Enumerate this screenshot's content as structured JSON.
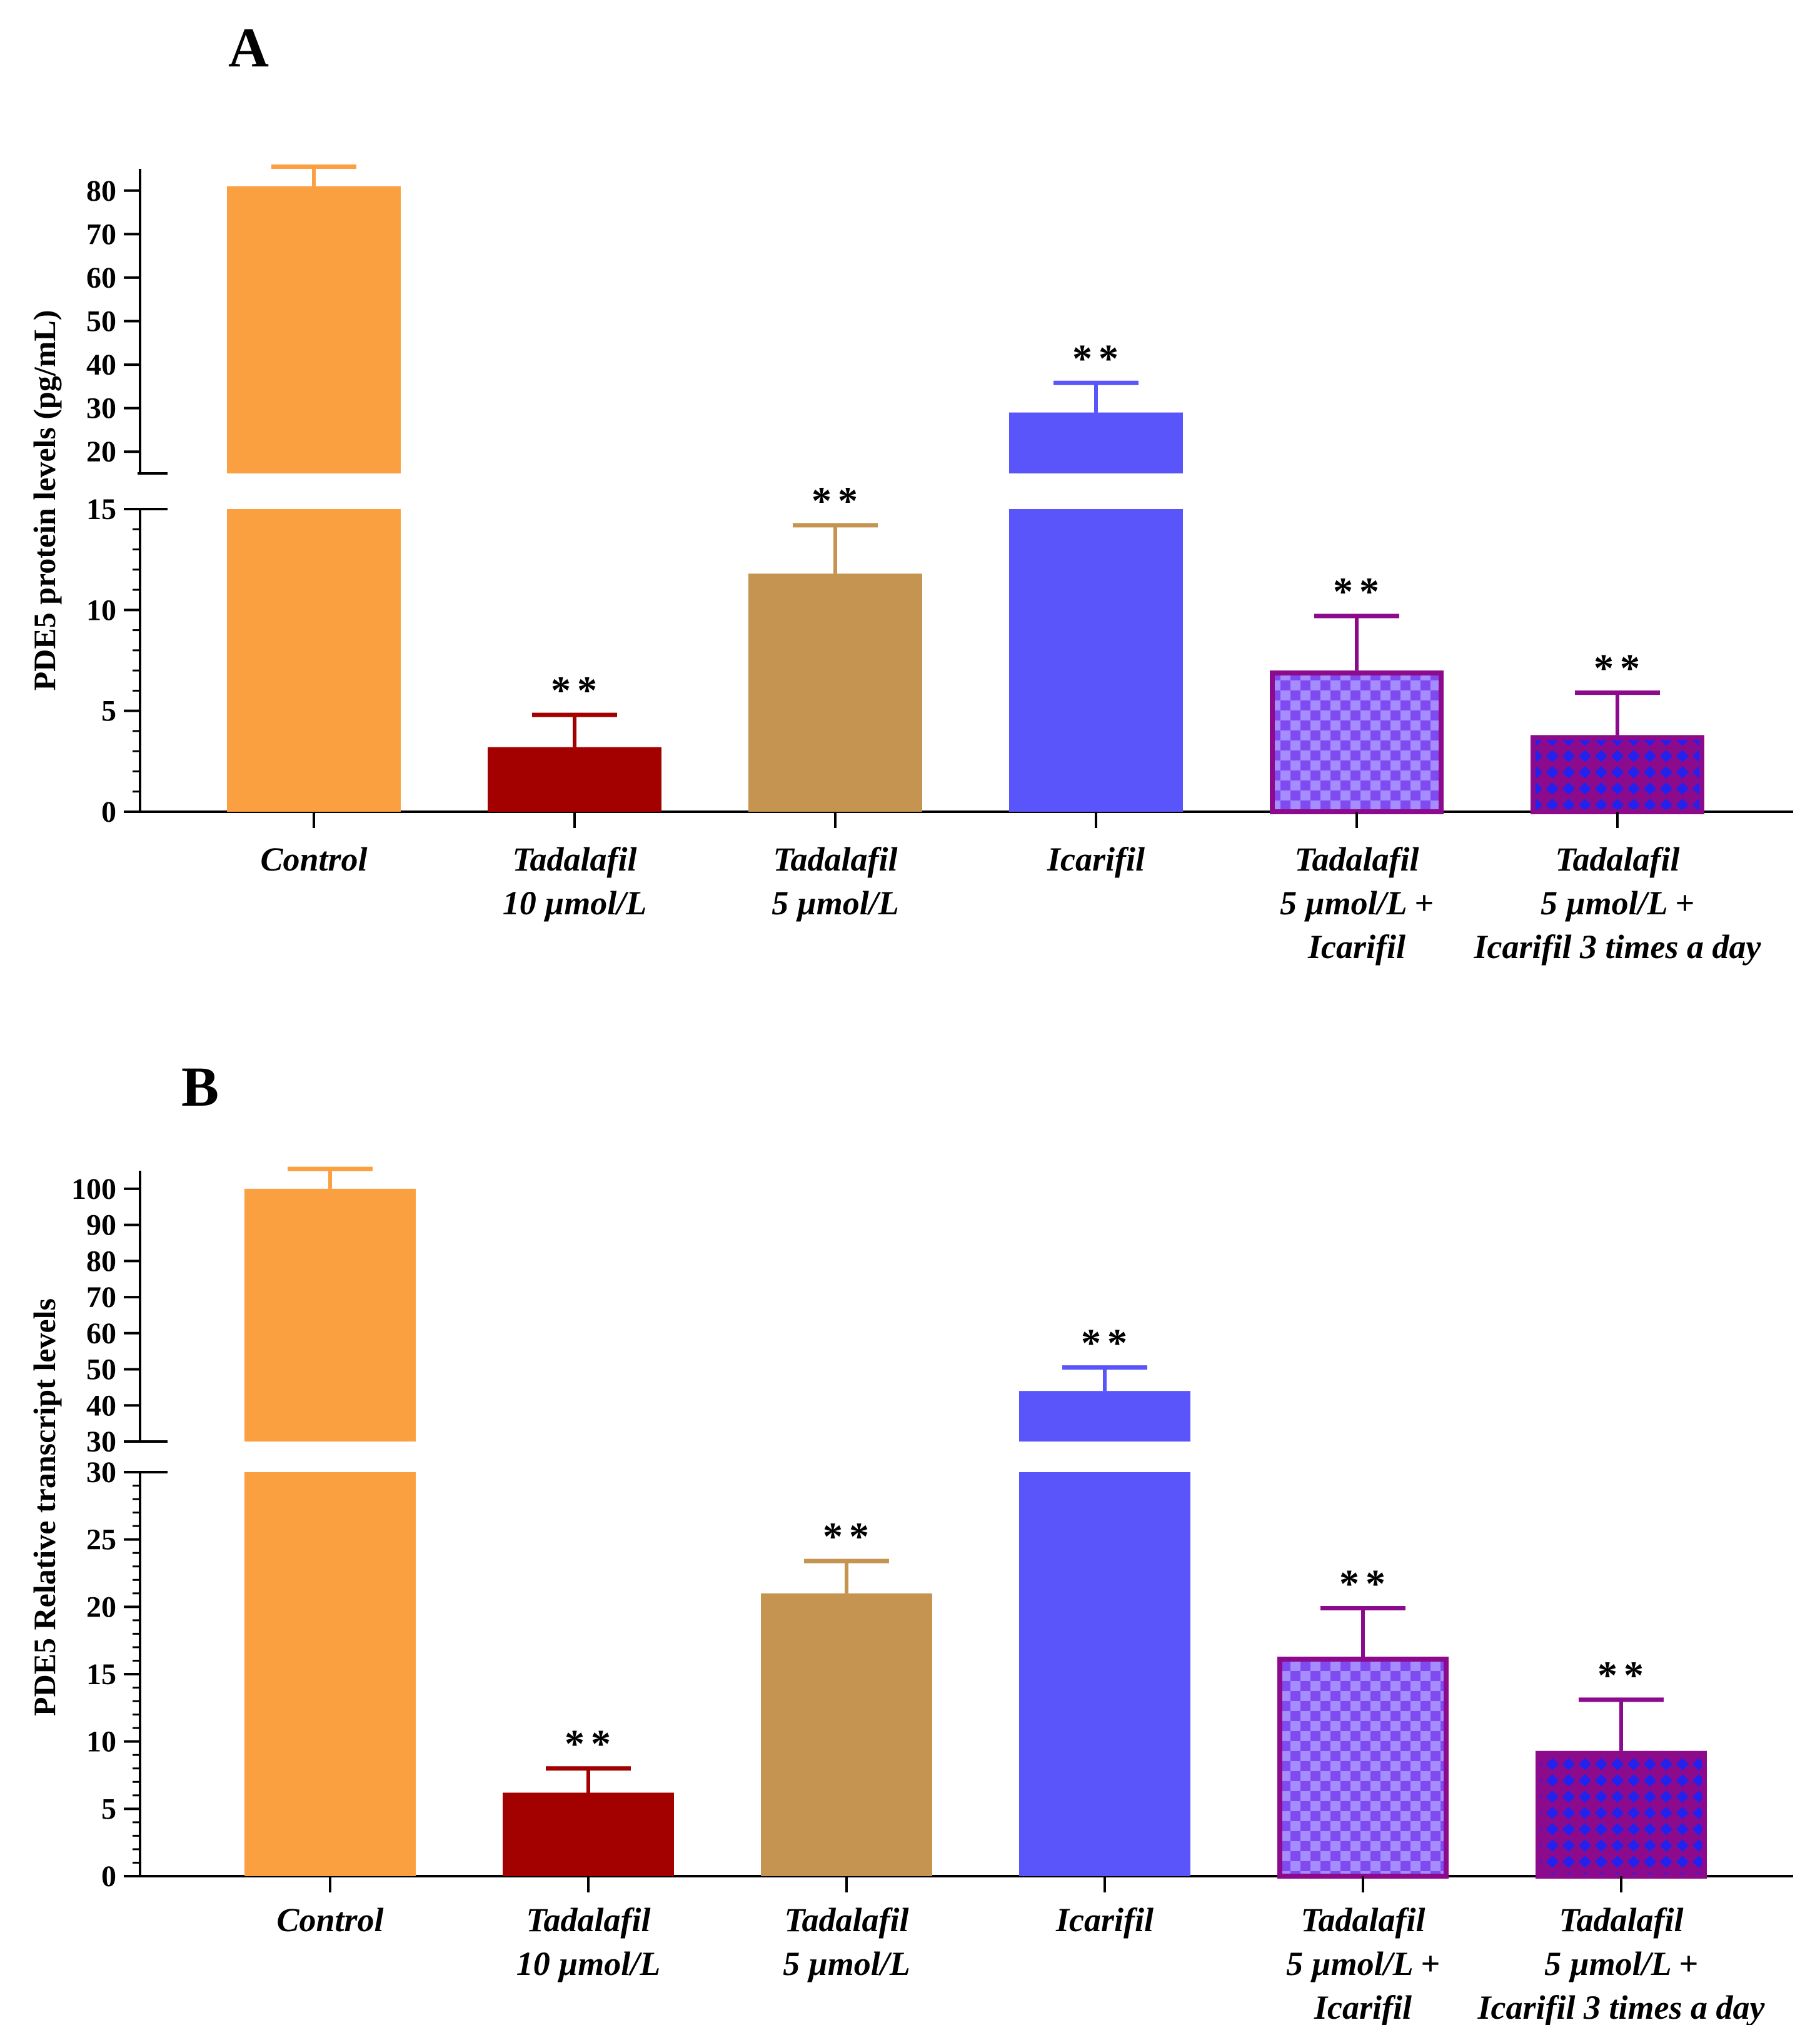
{
  "figure": {
    "panels": [
      "A",
      "B"
    ]
  },
  "colors": {
    "control": "#FBA040",
    "tad10": "#A30000",
    "tad5": "#C49450",
    "icarifil": "#5A55FA",
    "combo_border": "#8C0A8C",
    "combo_fill_a": "#7F4BF0",
    "combo_fill_b": "#A58CFF",
    "combo3_fill_a": "#8C0A8C",
    "combo3_fill_b": "#2222EE",
    "axis": "#000000"
  },
  "chart_data": [
    {
      "type": "bar",
      "panel": "A",
      "title": "",
      "xlabel": "",
      "ylabel": "PDE5 protein levels (pg/mL)",
      "categories": [
        "Control",
        "Tadalafil 10 µmol/L",
        "Tadalafil 5 µmol/L",
        "Icarifil",
        "Tadalafil 5 µmol/L + Icarifil",
        "Tadalafil 5 µmol/L + Icarifil 3 times a day"
      ],
      "category_lines": [
        [
          "Control"
        ],
        [
          "Tadalafil",
          "10 µmol/L"
        ],
        [
          "Tadalafil",
          "5 µmol/L"
        ],
        [
          "Icarifil"
        ],
        [
          "Tadalafil",
          "5 µmol/L +",
          "Icarifil"
        ],
        [
          "Tadalafil",
          "5 µmol/L +",
          "Icarifil 3 times a day"
        ]
      ],
      "values": [
        81,
        3.2,
        11.8,
        29,
        7.0,
        3.8
      ],
      "errors": [
        4.5,
        1.6,
        2.4,
        6.8,
        2.7,
        2.1
      ],
      "significance": [
        "",
        "**",
        "**",
        "**",
        "**",
        "**"
      ],
      "broken_axis": true,
      "lower_range": [
        0,
        15
      ],
      "upper_range": [
        15,
        85
      ],
      "lower_ticks": [
        0,
        5,
        10,
        15
      ],
      "upper_ticks": [
        20,
        30,
        40,
        50,
        60,
        70,
        80
      ],
      "lower_minor_step": 1
    },
    {
      "type": "bar",
      "panel": "B",
      "title": "",
      "xlabel": "",
      "ylabel": "PDE5 Relative transcript levels",
      "categories": [
        "Control",
        "Tadalafil 10 µmol/L",
        "Tadalafil 5 µmol/L",
        "Icarifil",
        "Tadalafil 5 µmol/L + Icarifil",
        "Tadalafil 5 µmol/L + Icarifil 3 times a day"
      ],
      "category_lines": [
        [
          "Control"
        ],
        [
          "Tadalafil",
          "10 µmol/L"
        ],
        [
          "Tadalafil",
          "5 µmol/L"
        ],
        [
          "Icarifil"
        ],
        [
          "Tadalafil",
          "5 µmol/L +",
          "Icarifil"
        ],
        [
          "Tadalafil",
          "5 µmol/L +",
          "Icarifil 3 times a day"
        ]
      ],
      "values": [
        100,
        6.2,
        21.0,
        44,
        16.3,
        9.3
      ],
      "errors": [
        5.5,
        1.8,
        2.4,
        6.5,
        3.6,
        3.8
      ],
      "significance": [
        "",
        "**",
        "**",
        "**",
        "**",
        "**"
      ],
      "broken_axis": true,
      "lower_range": [
        0,
        30
      ],
      "upper_range": [
        30,
        105
      ],
      "lower_ticks": [
        0,
        5,
        10,
        15,
        20,
        25,
        30
      ],
      "upper_ticks": [
        30,
        40,
        50,
        60,
        70,
        80,
        90,
        100
      ],
      "lower_minor_step": 1
    }
  ]
}
